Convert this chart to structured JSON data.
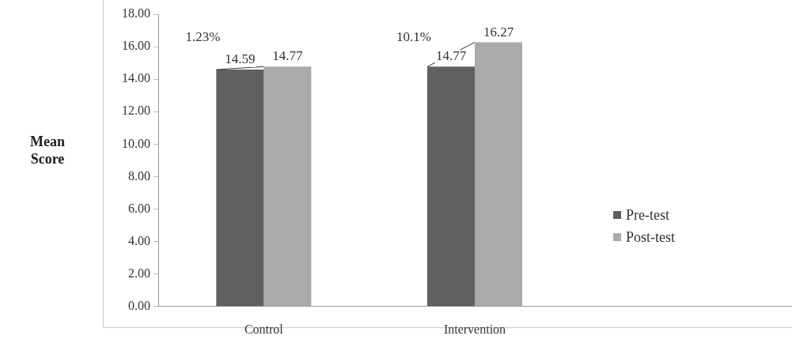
{
  "chart_data": {
    "type": "bar",
    "ylabel": "Mean Score",
    "categories": [
      "Control",
      "Intervention",
      null
    ],
    "series": [
      {
        "name": "Pre-test",
        "color": "#606060",
        "values": [
          14.59,
          14.77,
          null
        ]
      },
      {
        "name": "Post-test",
        "color": "#aaaaaa",
        "values": [
          14.77,
          16.27,
          null
        ]
      }
    ],
    "ylim": [
      0,
      18
    ],
    "yticks": [
      {
        "value": 0,
        "label": "0.00"
      },
      {
        "value": 2,
        "label": "2.00"
      },
      {
        "value": 4,
        "label": "4.00"
      },
      {
        "value": 6,
        "label": "6.00"
      },
      {
        "value": 8,
        "label": "8.00"
      },
      {
        "value": 10,
        "label": "10.00"
      },
      {
        "value": 12,
        "label": "12.00"
      },
      {
        "value": 14,
        "label": "14.00"
      },
      {
        "value": 16,
        "label": "16.00"
      },
      {
        "value": 18,
        "label": "18.00"
      }
    ],
    "grid": false,
    "legend": "right",
    "data_labels": true,
    "annotations": [
      "1.23%",
      "10.1%"
    ]
  }
}
